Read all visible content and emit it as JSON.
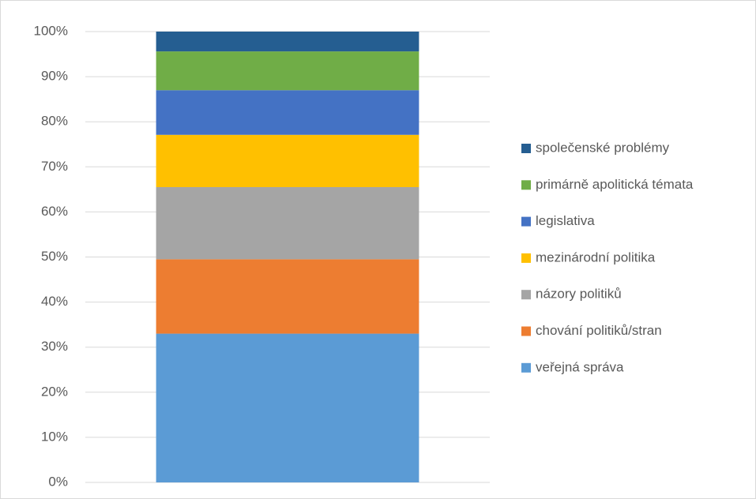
{
  "chart_data": {
    "type": "stacked_bar_100",
    "categories": [
      null
    ],
    "series": [
      {
        "name": "veřejná správa",
        "color": "#5b9bd5",
        "values": [
          33
        ]
      },
      {
        "name": "chování politiků/stran",
        "color": "#ed7d31",
        "values": [
          16.5
        ]
      },
      {
        "name": "názory politiků",
        "color": "#a5a5a5",
        "values": [
          16
        ]
      },
      {
        "name": "mezinárodní politika",
        "color": "#ffc000",
        "values": [
          11.6
        ]
      },
      {
        "name": "legislativa",
        "color": "#4472c4",
        "values": [
          9.9
        ]
      },
      {
        "name": "primárně apolitická témata",
        "color": "#70ad47",
        "values": [
          8.6
        ]
      },
      {
        "name": "společenské problémy",
        "color": "#255e91",
        "values": [
          4.4
        ]
      }
    ],
    "ylim": [
      0,
      100
    ],
    "yticks": [
      {
        "value": 0,
        "label": "0%"
      },
      {
        "value": 10,
        "label": "10%"
      },
      {
        "value": 20,
        "label": "20%"
      },
      {
        "value": 30,
        "label": "30%"
      },
      {
        "value": 40,
        "label": "40%"
      },
      {
        "value": 50,
        "label": "50%"
      },
      {
        "value": 60,
        "label": "60%"
      },
      {
        "value": 70,
        "label": "70%"
      },
      {
        "value": 80,
        "label": "80%"
      },
      {
        "value": 90,
        "label": "90%"
      },
      {
        "value": 100,
        "label": "100%"
      }
    ],
    "grid": true,
    "legend": "right"
  }
}
